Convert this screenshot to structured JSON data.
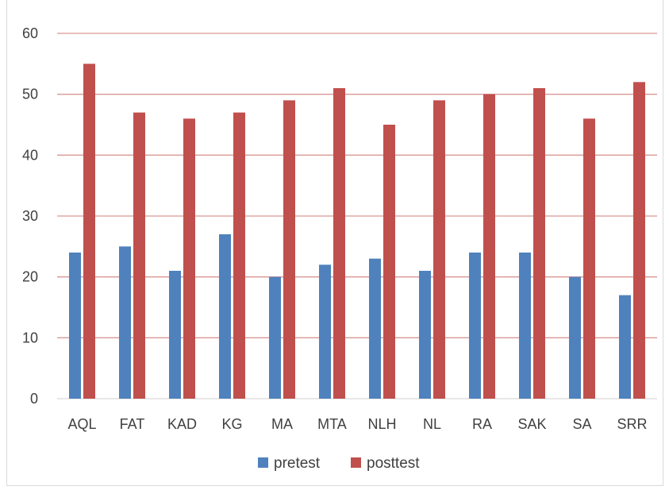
{
  "chart_data": {
    "type": "bar",
    "categories": [
      "AQL",
      "FAT",
      "KAD",
      "KG",
      "MA",
      "MTA",
      "NLH",
      "NL",
      "RA",
      "SAK",
      "SA",
      "SRR"
    ],
    "series": [
      {
        "name": "pretest",
        "values": [
          24,
          25,
          21,
          27,
          20,
          22,
          23,
          21,
          24,
          24,
          20,
          17
        ],
        "color": "#4f81bd"
      },
      {
        "name": "posttest",
        "values": [
          55,
          47,
          46,
          47,
          49,
          51,
          45,
          49,
          50,
          51,
          46,
          52
        ],
        "color": "#c0504d"
      }
    ],
    "ylim": [
      0,
      60
    ],
    "yticks": [
      0,
      10,
      20,
      30,
      40,
      50,
      60
    ],
    "gridlines": true,
    "gridline_color": "#d99694",
    "legend_position": "bottom",
    "title": "",
    "xlabel": "",
    "ylabel": ""
  }
}
